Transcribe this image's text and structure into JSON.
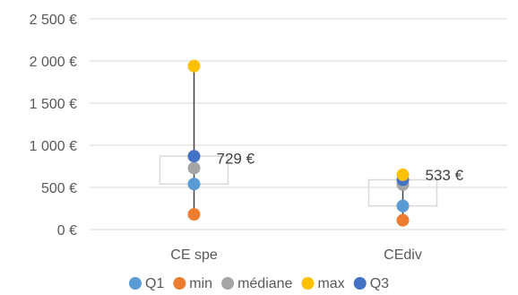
{
  "chart_data": {
    "type": "scatter",
    "categories": [
      "CE spe",
      "CEdiv"
    ],
    "ylim": [
      0,
      2500
    ],
    "yticks": [
      {
        "value": 0,
        "label": "0 €"
      },
      {
        "value": 500,
        "label": "500 €"
      },
      {
        "value": 1000,
        "label": "1 000 €"
      },
      {
        "value": 1500,
        "label": "1 500 €"
      },
      {
        "value": 2000,
        "label": "2 000 €"
      },
      {
        "value": 2500,
        "label": "2 500 €"
      }
    ],
    "grid": true,
    "legend_position": "bottom",
    "series": [
      {
        "name": "Q1",
        "color": "#5B9BD5",
        "values": [
          540,
          280
        ]
      },
      {
        "name": "min",
        "color": "#ED7D31",
        "values": [
          180,
          110
        ]
      },
      {
        "name": "médiane",
        "color": "#A5A5A5",
        "values": [
          729,
          533
        ]
      },
      {
        "name": "max",
        "color": "#FFC000",
        "values": [
          1940,
          650
        ]
      },
      {
        "name": "Q3",
        "color": "#4472C4",
        "values": [
          870,
          590
        ]
      }
    ],
    "box_outline_color": "#D9D9D9",
    "whisker_color": "#404040",
    "data_labels": [
      {
        "category": "CE spe",
        "series": "médiane",
        "text": "729 €"
      },
      {
        "category": "CEdiv",
        "series": "médiane",
        "text": "533 €"
      }
    ]
  }
}
